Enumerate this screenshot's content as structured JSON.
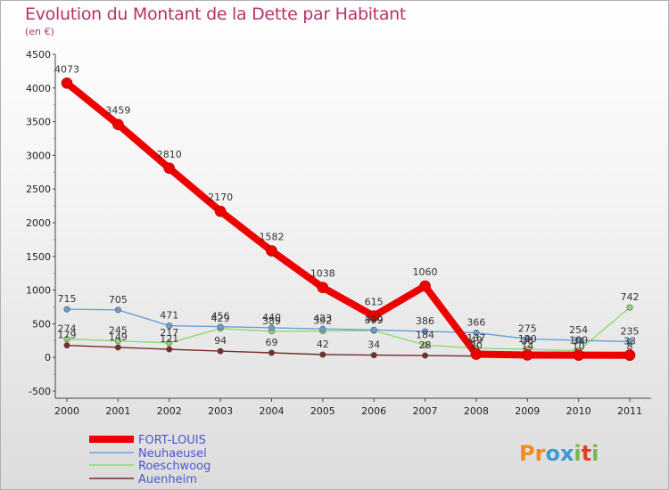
{
  "header": {
    "title": "Evolution du Montant de la Dette par Habitant",
    "subtitle": "(en €)"
  },
  "logo": {
    "letters": [
      "P",
      "r",
      "o",
      "x",
      "i",
      "t",
      "i"
    ],
    "colors": [
      "#f08c1e",
      "#f08c1e",
      "#3c9ad6",
      "#3c9ad6",
      "#7ab648",
      "#e0402a",
      "#7ab648"
    ]
  },
  "chart_data": {
    "type": "line",
    "title": "Evolution du Montant de la Dette par Habitant",
    "subtitle": "(en €)",
    "xlabel": "",
    "ylabel": "",
    "x": [
      "2000",
      "2001",
      "2002",
      "2003",
      "2004",
      "2005",
      "2006",
      "2007",
      "2008",
      "2009",
      "2010",
      "2011"
    ],
    "ylim": [
      -500,
      4500
    ],
    "yticks": [
      -500,
      0,
      500,
      1000,
      1500,
      2000,
      2500,
      3000,
      3500,
      4000,
      4500
    ],
    "grid": false,
    "legend_position": "bottom-left",
    "series": [
      {
        "name": "FORT-LOUIS",
        "color": "#ee0000",
        "values": [
          4073,
          3459,
          2810,
          2170,
          1582,
          1038,
          615,
          1060,
          49,
          36,
          34,
          33
        ]
      },
      {
        "name": "Neuhaeusel",
        "color": "#6a9fd6",
        "values": [
          715,
          705,
          471,
          456,
          440,
          423,
          409,
          386,
          366,
          275,
          254,
          235
        ]
      },
      {
        "name": "Roeschwoog",
        "color": "#90d870",
        "values": [
          274,
          245,
          217,
          429,
          389,
          392,
          399,
          184,
          137,
          120,
          100,
          742
        ]
      },
      {
        "name": "Auenheim",
        "color": "#7a2a2a",
        "values": [
          179,
          149,
          121,
          94,
          69,
          42,
          34,
          28,
          20,
          14,
          10,
          8
        ]
      }
    ]
  }
}
